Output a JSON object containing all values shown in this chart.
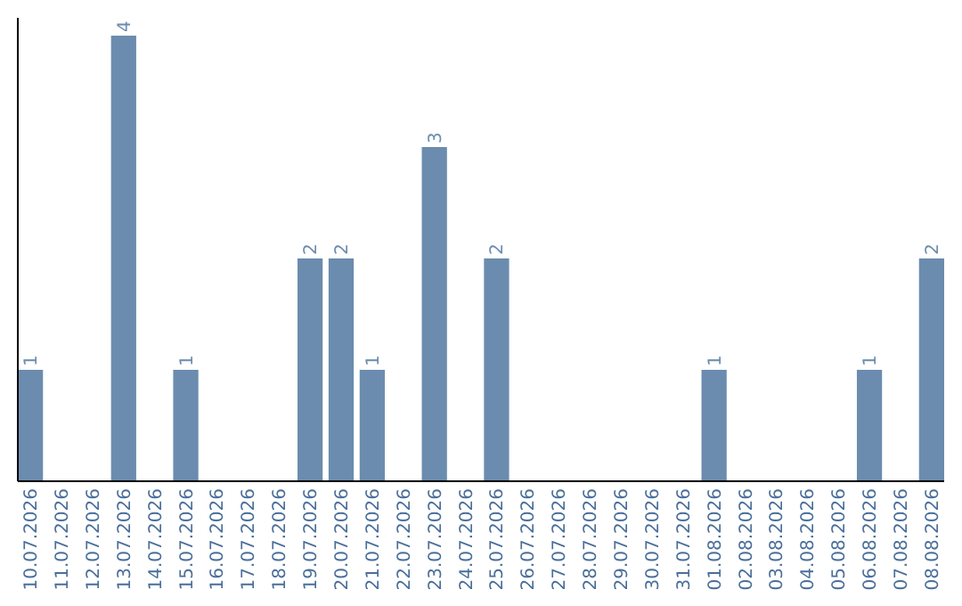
{
  "chart_data": {
    "type": "bar",
    "categories": [
      "10.07.2026",
      "11.07.2026",
      "12.07.2026",
      "13.07.2026",
      "14.07.2026",
      "15.07.2026",
      "16.07.2026",
      "17.07.2026",
      "18.07.2026",
      "19.07.2026",
      "20.07.2026",
      "21.07.2026",
      "22.07.2026",
      "23.07.2026",
      "24.07.2026",
      "25.07.2026",
      "26.07.2026",
      "27.07.2026",
      "28.07.2026",
      "29.07.2026",
      "30.07.2026",
      "31.07.2026",
      "01.08.2026",
      "02.08.2026",
      "03.08.2026",
      "04.08.2026",
      "05.08.2026",
      "06.08.2026",
      "07.08.2026",
      "08.08.2026"
    ],
    "values": [
      1,
      0,
      0,
      4,
      0,
      1,
      0,
      0,
      0,
      2,
      2,
      1,
      0,
      3,
      0,
      2,
      0,
      0,
      0,
      0,
      0,
      0,
      1,
      0,
      0,
      0,
      0,
      1,
      0,
      2
    ],
    "value_labels": [
      "1",
      null,
      null,
      "4",
      null,
      "1",
      null,
      null,
      null,
      "2",
      "2",
      "1",
      null,
      "3",
      null,
      "2",
      null,
      null,
      null,
      null,
      null,
      null,
      "1",
      null,
      null,
      null,
      null,
      "1",
      null,
      "2"
    ],
    "color": "#6b8cae",
    "ylim": [
      0,
      4.16
    ],
    "tick_labels": "x"
  }
}
